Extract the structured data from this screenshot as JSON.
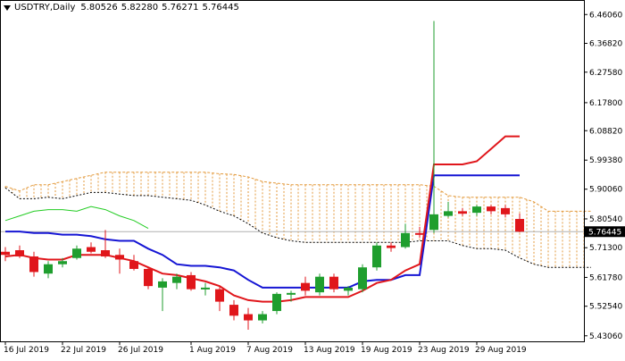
{
  "header": {
    "symbol": "USDTRY,Daily",
    "open": "5.80526",
    "high": "5.82280",
    "low": "5.76271",
    "close": "5.76445"
  },
  "colors": {
    "bull": "#1f9e2e",
    "bear": "#e0161b",
    "tenkan": "#e0161b",
    "kijun": "#1515d4",
    "chikou": "#22cc22",
    "cloud": "#e39a3c",
    "cloud_edge": "#000000",
    "last_price_line": "#b0b0b0"
  },
  "chart_data": {
    "type": "candlestick",
    "symbol": "USDTRY",
    "timeframe": "Daily",
    "ylim": [
      5.43,
      6.49
    ],
    "y_ticks": [
      "6.46060",
      "6.36820",
      "6.27580",
      "6.17800",
      "6.08820",
      "5.99380",
      "5.90060",
      "5.80540",
      "5.71300",
      "5.61780",
      "5.52540",
      "5.43060"
    ],
    "last_price_label": "5.76445",
    "last_price": 5.76445,
    "x_tick_labels": [
      "16 Jul 2019",
      "22 Jul 2019",
      "26 Jul 2019",
      "1 Aug 2019",
      "7 Aug 2019",
      "13 Aug 2019",
      "19 Aug 2019",
      "23 Aug 2019",
      "29 Aug 2019"
    ],
    "x_tick_bar_index": [
      0,
      4,
      8,
      13,
      17,
      21,
      25,
      29,
      33
    ],
    "candles": [
      {
        "o": 5.7,
        "h": 5.715,
        "l": 5.67,
        "c": 5.69
      },
      {
        "o": 5.705,
        "h": 5.72,
        "l": 5.68,
        "c": 5.685
      },
      {
        "o": 5.685,
        "h": 5.7,
        "l": 5.62,
        "c": 5.635
      },
      {
        "o": 5.63,
        "h": 5.67,
        "l": 5.615,
        "c": 5.66
      },
      {
        "o": 5.66,
        "h": 5.68,
        "l": 5.65,
        "c": 5.67
      },
      {
        "o": 5.68,
        "h": 5.72,
        "l": 5.675,
        "c": 5.71
      },
      {
        "o": 5.715,
        "h": 5.73,
        "l": 5.695,
        "c": 5.7
      },
      {
        "o": 5.705,
        "h": 5.77,
        "l": 5.68,
        "c": 5.685
      },
      {
        "o": 5.69,
        "h": 5.71,
        "l": 5.63,
        "c": 5.675
      },
      {
        "o": 5.67,
        "h": 5.69,
        "l": 5.64,
        "c": 5.645
      },
      {
        "o": 5.645,
        "h": 5.65,
        "l": 5.58,
        "c": 5.59
      },
      {
        "o": 5.585,
        "h": 5.615,
        "l": 5.51,
        "c": 5.605
      },
      {
        "o": 5.6,
        "h": 5.63,
        "l": 5.58,
        "c": 5.62
      },
      {
        "o": 5.625,
        "h": 5.635,
        "l": 5.575,
        "c": 5.58
      },
      {
        "o": 5.58,
        "h": 5.6,
        "l": 5.56,
        "c": 5.585
      },
      {
        "o": 5.58,
        "h": 5.59,
        "l": 5.51,
        "c": 5.54
      },
      {
        "o": 5.53,
        "h": 5.545,
        "l": 5.48,
        "c": 5.495
      },
      {
        "o": 5.5,
        "h": 5.52,
        "l": 5.45,
        "c": 5.48
      },
      {
        "o": 5.48,
        "h": 5.51,
        "l": 5.47,
        "c": 5.5
      },
      {
        "o": 5.51,
        "h": 5.57,
        "l": 5.5,
        "c": 5.565
      },
      {
        "o": 5.565,
        "h": 5.575,
        "l": 5.54,
        "c": 5.568
      },
      {
        "o": 5.6,
        "h": 5.62,
        "l": 5.56,
        "c": 5.575
      },
      {
        "o": 5.57,
        "h": 5.63,
        "l": 5.56,
        "c": 5.62
      },
      {
        "o": 5.62,
        "h": 5.63,
        "l": 5.57,
        "c": 5.58
      },
      {
        "o": 5.575,
        "h": 5.59,
        "l": 5.56,
        "c": 5.585
      },
      {
        "o": 5.58,
        "h": 5.66,
        "l": 5.57,
        "c": 5.65
      },
      {
        "o": 5.65,
        "h": 5.73,
        "l": 5.64,
        "c": 5.72
      },
      {
        "o": 5.72,
        "h": 5.73,
        "l": 5.7,
        "c": 5.712
      },
      {
        "o": 5.715,
        "h": 5.79,
        "l": 5.71,
        "c": 5.76
      },
      {
        "o": 5.76,
        "h": 5.78,
        "l": 5.745,
        "c": 5.755
      },
      {
        "o": 5.77,
        "h": 6.44,
        "l": 5.76,
        "c": 5.82
      },
      {
        "o": 5.815,
        "h": 5.86,
        "l": 5.81,
        "c": 5.83
      },
      {
        "o": 5.83,
        "h": 5.84,
        "l": 5.815,
        "c": 5.822
      },
      {
        "o": 5.825,
        "h": 5.85,
        "l": 5.815,
        "c": 5.845
      },
      {
        "o": 5.845,
        "h": 5.85,
        "l": 5.82,
        "c": 5.83
      },
      {
        "o": 5.84,
        "h": 5.85,
        "l": 5.81,
        "c": 5.82
      },
      {
        "o": 5.80526,
        "h": 5.8228,
        "l": 5.76271,
        "c": 5.76445
      }
    ],
    "indicators": {
      "tenkan_sen": [
        5.685,
        5.69,
        5.68,
        5.675,
        5.675,
        5.69,
        5.69,
        5.69,
        5.68,
        5.67,
        5.65,
        5.63,
        5.625,
        5.615,
        5.605,
        5.59,
        5.56,
        5.545,
        5.54,
        5.54,
        5.545,
        5.555,
        5.555,
        5.555,
        5.555,
        5.575,
        5.6,
        5.61,
        5.64,
        5.66,
        5.98,
        5.98,
        5.98,
        5.99,
        6.03,
        6.07,
        6.07
      ],
      "kijun_sen": [
        5.765,
        5.765,
        5.76,
        5.76,
        5.755,
        5.755,
        5.75,
        5.74,
        5.735,
        5.735,
        5.71,
        5.69,
        5.66,
        5.655,
        5.655,
        5.65,
        5.64,
        5.61,
        5.585,
        5.585,
        5.585,
        5.585,
        5.585,
        5.585,
        5.585,
        5.605,
        5.61,
        5.61,
        5.625,
        5.625,
        5.945,
        5.945,
        5.945,
        5.945,
        5.945,
        5.945,
        5.945
      ],
      "chikou_span": [
        5.8,
        5.815,
        5.83,
        5.835,
        5.835,
        5.83,
        5.845,
        5.835,
        5.815,
        5.8,
        5.775
      ],
      "senkou_span_a": [
        5.91,
        5.895,
        5.915,
        5.915,
        5.925,
        5.935,
        5.945,
        5.955,
        5.955,
        5.955,
        5.955,
        5.955,
        5.955,
        5.955,
        5.955,
        5.95,
        5.948,
        5.94,
        5.925,
        5.92,
        5.915,
        5.915,
        5.915,
        5.915,
        5.915,
        5.915,
        5.915,
        5.915,
        5.915,
        5.915,
        5.91,
        5.88,
        5.875,
        5.875,
        5.875,
        5.875,
        5.875,
        5.86,
        5.83,
        5.83,
        5.83,
        5.83
      ],
      "senkou_span_b": [
        5.905,
        5.87,
        5.87,
        5.875,
        5.87,
        5.88,
        5.89,
        5.89,
        5.885,
        5.88,
        5.88,
        5.875,
        5.87,
        5.865,
        5.85,
        5.83,
        5.815,
        5.79,
        5.76,
        5.745,
        5.735,
        5.73,
        5.73,
        5.73,
        5.73,
        5.73,
        5.73,
        5.73,
        5.73,
        5.735,
        5.735,
        5.735,
        5.72,
        5.71,
        5.71,
        5.705,
        5.68,
        5.66,
        5.65,
        5.65,
        5.65,
        5.65
      ]
    },
    "grid": false
  }
}
